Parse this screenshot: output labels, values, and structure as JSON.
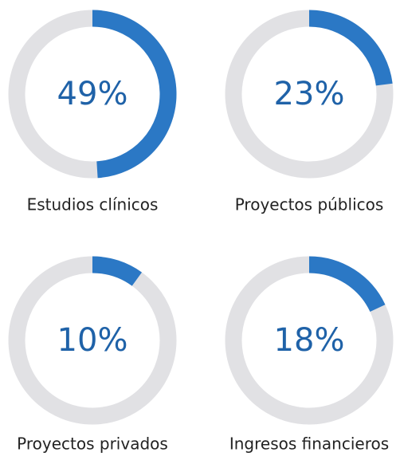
{
  "chart_data": [
    {
      "type": "donut",
      "categories": [
        "Estudios clínicos"
      ],
      "values": [
        49
      ],
      "value_labels": [
        "49%"
      ],
      "color": "#2b78c5",
      "track_color": "#e1e1e4"
    },
    {
      "type": "donut",
      "categories": [
        "Proyectos públicos"
      ],
      "values": [
        23
      ],
      "value_labels": [
        "23%"
      ],
      "color": "#2b78c5",
      "track_color": "#e1e1e4"
    },
    {
      "type": "donut",
      "categories": [
        "Proyectos privados"
      ],
      "values": [
        10
      ],
      "value_labels": [
        "10%"
      ],
      "color": "#2b78c5",
      "track_color": "#e1e1e4"
    },
    {
      "type": "donut",
      "categories": [
        "Ingresos financieros"
      ],
      "values": [
        18
      ],
      "value_labels": [
        "18%"
      ],
      "color": "#2b78c5",
      "track_color": "#e1e1e4"
    }
  ]
}
